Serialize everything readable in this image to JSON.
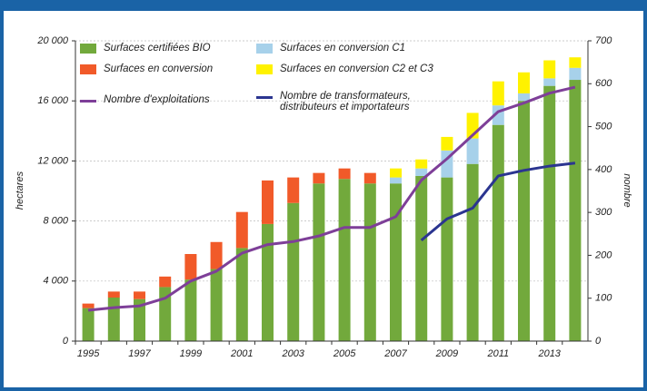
{
  "chart_data": {
    "type": "bar",
    "categories": [
      "1995",
      null,
      "1997",
      null,
      "1999",
      null,
      "2001",
      null,
      "2003",
      null,
      "2005",
      null,
      "2007",
      null,
      "2009",
      null,
      "2011",
      null,
      "2013",
      null
    ],
    "stacked": true,
    "series": [
      {
        "name": "Surfaces certifiées BIO",
        "color": "#72a93c",
        "values": [
          2200,
          2900,
          2800,
          3600,
          4100,
          4800,
          6200,
          7800,
          9200,
          10500,
          10800,
          10500,
          10500,
          11000,
          10900,
          11800,
          14400,
          16000,
          17000,
          17400
        ]
      },
      {
        "name": "Surfaces en conversion",
        "color": "#f15a29",
        "values": [
          300,
          400,
          500,
          700,
          1700,
          1800,
          2400,
          2900,
          1700,
          700,
          700,
          700,
          0,
          0,
          0,
          0,
          0,
          0,
          0,
          0
        ]
      },
      {
        "name": "Surfaces en conversion C1",
        "color": "#a7d1ea",
        "values": [
          0,
          0,
          0,
          0,
          0,
          0,
          0,
          0,
          0,
          0,
          0,
          0,
          400,
          500,
          1800,
          1700,
          1300,
          500,
          500,
          800
        ]
      },
      {
        "name": "Surfaces en conversion C2 et C3",
        "color": "#fff200",
        "values": [
          0,
          0,
          0,
          0,
          0,
          0,
          0,
          0,
          0,
          0,
          0,
          0,
          600,
          600,
          900,
          1700,
          1600,
          1400,
          1200,
          700
        ]
      },
      {
        "name": "Nombre d'exploitations",
        "color": "#7e3f98",
        "type": "line",
        "axis": "y2",
        "values": [
          72,
          78,
          82,
          100,
          140,
          163,
          205,
          225,
          232,
          245,
          265,
          265,
          290,
          375,
          425,
          480,
          535,
          555,
          578,
          592
        ]
      },
      {
        "name": "Nombre de transformateurs, distributeurs et importateurs",
        "color": "#2b3590",
        "type": "line",
        "axis": "y2",
        "values": [
          null,
          null,
          null,
          null,
          null,
          null,
          null,
          null,
          null,
          null,
          null,
          null,
          null,
          235,
          285,
          310,
          385,
          398,
          408,
          415
        ]
      }
    ],
    "y_label": "hectares",
    "y2_label": "nombre",
    "ylim": [
      0,
      20000
    ],
    "yticks": [
      0,
      {
        "value": 4000,
        "label": "4 000"
      },
      {
        "value": 8000,
        "label": "8 000"
      },
      {
        "value": 12000,
        "label": "12 000"
      },
      {
        "value": 16000,
        "label": "16 000"
      },
      {
        "value": 20000,
        "label": "20 000"
      }
    ],
    "y2lim": [
      0,
      700
    ],
    "y2ticks": [
      0,
      100,
      200,
      300,
      400,
      500,
      600,
      700
    ],
    "grid": true
  }
}
